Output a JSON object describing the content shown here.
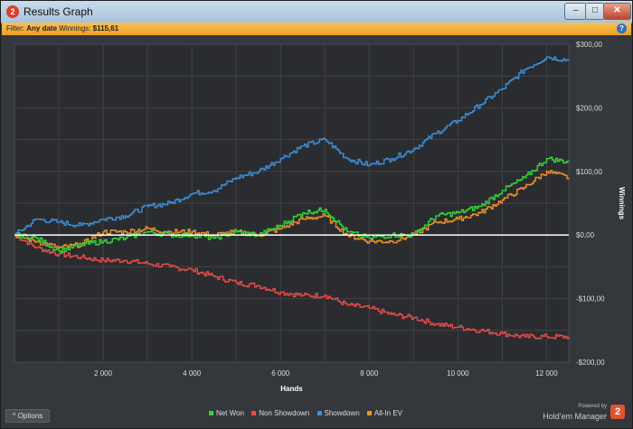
{
  "window": {
    "app_icon": "2",
    "title": "Results Graph",
    "controls": {
      "minimize": "–",
      "maximize": "□",
      "close": "✕"
    }
  },
  "filter": {
    "prefix": "Filter:",
    "filter_value": "Any date",
    "winnings_label": "Winnings:",
    "winnings_value": "$115,61",
    "help_icon": "?"
  },
  "colors": {
    "net_won": "#33d63a",
    "non_showdown": "#e84a4a",
    "showdown": "#3d8fd9",
    "all_in_ev": "#f0902a",
    "zero_line": "#ffffff"
  },
  "chart_data": {
    "type": "line",
    "xlabel": "Hands",
    "ylabel": "Winnings",
    "xlim": [
      0,
      12500
    ],
    "ylim": [
      -200,
      300
    ],
    "x_ticks": [
      2000,
      4000,
      6000,
      8000,
      10000,
      12000
    ],
    "x_tick_labels": [
      "2 000",
      "4 000",
      "6 000",
      "8 000",
      "10 000",
      "12 000"
    ],
    "y_ticks": [
      300,
      200,
      100,
      0,
      -100,
      -200
    ],
    "y_tick_labels": [
      "$300,00",
      "$200,00",
      "$100,00",
      "$0,00",
      "-$100,00",
      "-$200,00"
    ],
    "grid": true,
    "legend_position": "bottom",
    "x": [
      0,
      500,
      1000,
      1500,
      2000,
      2500,
      3000,
      3500,
      4000,
      4500,
      5000,
      5500,
      6000,
      6500,
      7000,
      7500,
      8000,
      8500,
      9000,
      9500,
      10000,
      10500,
      11000,
      11500,
      12000,
      12500
    ],
    "series": [
      {
        "name": "Net Won",
        "values": [
          0,
          -5,
          -25,
          -15,
          -10,
          -5,
          5,
          0,
          0,
          -5,
          5,
          0,
          15,
          35,
          40,
          5,
          -5,
          0,
          0,
          30,
          35,
          45,
          70,
          90,
          120,
          115
        ]
      },
      {
        "name": "Non Showdown",
        "values": [
          0,
          -20,
          -30,
          -35,
          -40,
          -40,
          -45,
          -50,
          -55,
          -65,
          -75,
          -80,
          -90,
          -95,
          -95,
          -110,
          -115,
          -125,
          -130,
          -140,
          -145,
          -150,
          -155,
          -160,
          -160,
          -160
        ]
      },
      {
        "name": "Showdown",
        "values": [
          0,
          25,
          20,
          15,
          25,
          30,
          45,
          50,
          65,
          70,
          90,
          100,
          120,
          140,
          150,
          120,
          110,
          120,
          135,
          160,
          180,
          205,
          230,
          260,
          280,
          275
        ]
      },
      {
        "name": "All-In EV",
        "values": [
          0,
          -10,
          -20,
          -15,
          5,
          5,
          10,
          5,
          5,
          0,
          5,
          0,
          10,
          25,
          30,
          0,
          -10,
          -10,
          0,
          20,
          25,
          35,
          55,
          75,
          100,
          90
        ]
      }
    ]
  },
  "footer": {
    "options_label": "Options",
    "options_icon": "^",
    "powered_by": "Powered by",
    "brand": "Hold'em Manager",
    "brand_icon": "2"
  }
}
